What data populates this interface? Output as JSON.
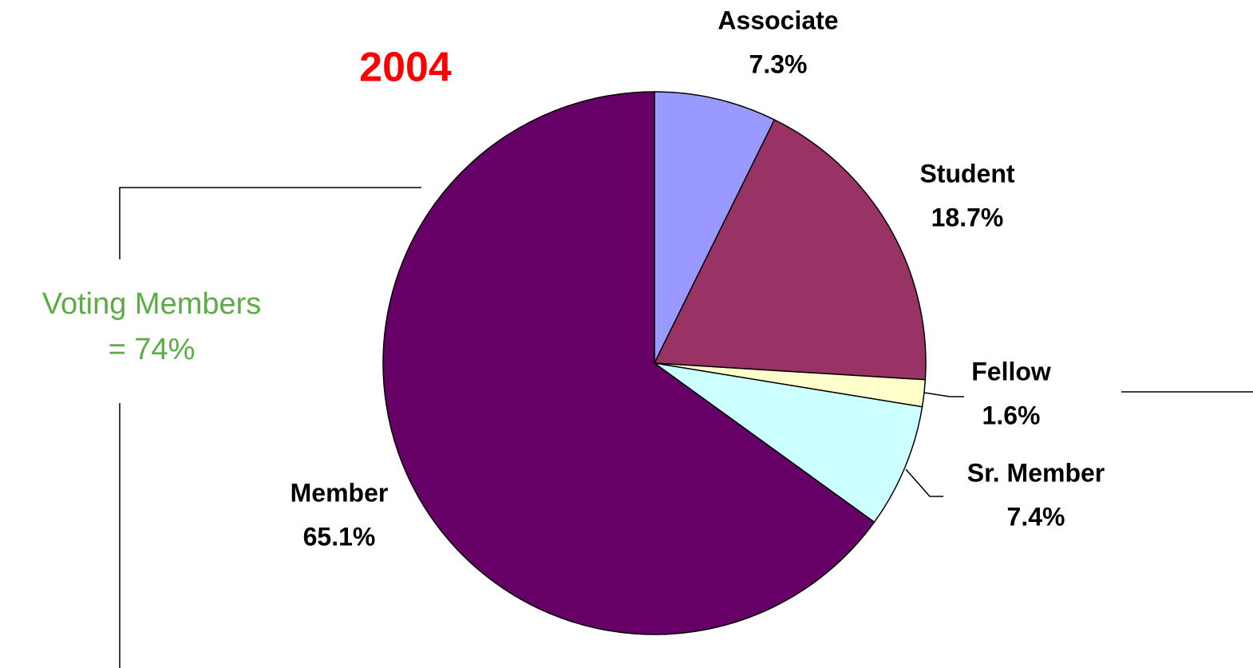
{
  "chart_data": {
    "type": "pie",
    "title": "2004",
    "categories": [
      "Associate",
      "Student",
      "Fellow",
      "Sr. Member",
      "Member"
    ],
    "values": [
      7.3,
      18.7,
      1.6,
      7.4,
      65.1
    ],
    "value_labels": [
      "7.3%",
      "18.7%",
      "1.6%",
      "7.4%",
      "65.1%"
    ],
    "colors": [
      "#9999ff",
      "#993366",
      "#ffffcc",
      "#ccffff",
      "#660066"
    ],
    "annotations": [
      "Voting Members",
      "= 74%"
    ]
  }
}
